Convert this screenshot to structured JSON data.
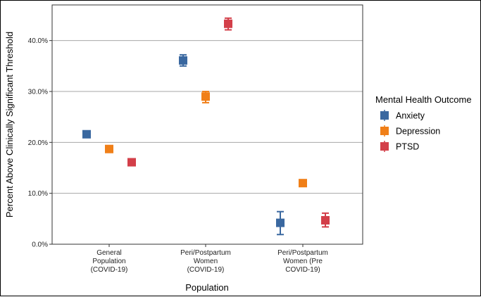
{
  "chart_data": {
    "type": "scatter",
    "title": "",
    "xlabel": "Population",
    "ylabel": "Percent Above Clinically Significant Threshold",
    "categories": [
      [
        "General",
        "Population",
        "(COVID-19)"
      ],
      [
        "Peri/Postpartum",
        "Women",
        "(COVID-19)"
      ],
      [
        "Peri/Postpartum",
        "Women (Pre",
        "COVID-19)"
      ]
    ],
    "ylim": [
      0,
      0.47
    ],
    "yticks": [
      0,
      0.1,
      0.2,
      0.3,
      0.4
    ],
    "ytick_labels": [
      "0.0%",
      "10.0%",
      "20.0%",
      "30.0%",
      "40.0%"
    ],
    "grid": true,
    "legend": {
      "title": "Mental Health Outcome",
      "position": "right"
    },
    "series": [
      {
        "name": "Anxiety",
        "color": "#3a68a0",
        "values": [
          0.216,
          0.361,
          0.042
        ],
        "lower": [
          null,
          0.35,
          0.019
        ],
        "upper": [
          null,
          0.372,
          0.064
        ]
      },
      {
        "name": "Depression",
        "color": "#f07f18",
        "values": [
          0.187,
          0.29,
          0.12
        ],
        "lower": [
          null,
          0.278,
          null
        ],
        "upper": [
          null,
          0.3,
          null
        ]
      },
      {
        "name": "PTSD",
        "color": "#d33f49",
        "values": [
          0.161,
          0.433,
          0.047
        ],
        "lower": [
          null,
          0.421,
          0.034
        ],
        "upper": [
          null,
          0.444,
          0.061
        ]
      }
    ]
  }
}
